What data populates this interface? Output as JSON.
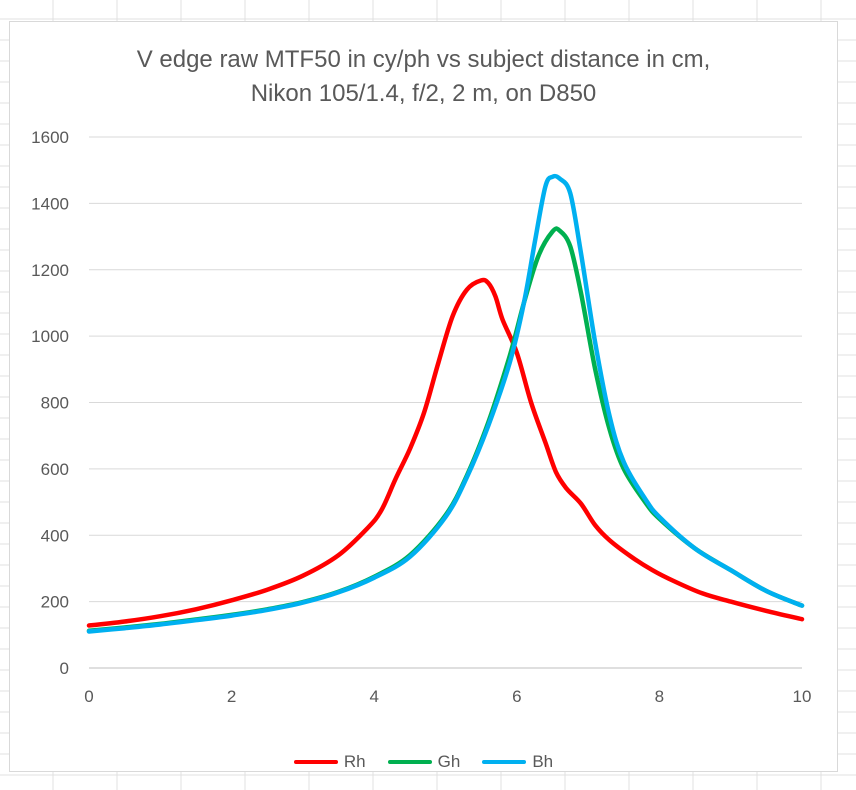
{
  "chart_data": {
    "type": "line",
    "title": [
      "V edge raw MTF50 in cy/ph vs subject distance in cm,",
      "Nikon 105/1.4, f/2, 2 m, on D850"
    ],
    "xlabel": "",
    "ylabel": "",
    "xlim": [
      0,
      10
    ],
    "ylim": [
      0,
      1600
    ],
    "xticks": [
      0,
      2,
      4,
      6,
      8,
      10
    ],
    "yticks": [
      0,
      200,
      400,
      600,
      800,
      1000,
      1200,
      1400,
      1600
    ],
    "grid": "horizontal",
    "legend_position": "bottom",
    "series": [
      {
        "name": "Rh",
        "color": "#ff0000",
        "points": [
          [
            0,
            128
          ],
          [
            0.5,
            140
          ],
          [
            1,
            156
          ],
          [
            1.5,
            177
          ],
          [
            2,
            204
          ],
          [
            2.5,
            236
          ],
          [
            3,
            278
          ],
          [
            3.5,
            340
          ],
          [
            3.9,
            420
          ],
          [
            4.1,
            475
          ],
          [
            4.3,
            570
          ],
          [
            4.5,
            660
          ],
          [
            4.7,
            770
          ],
          [
            4.9,
            920
          ],
          [
            5.1,
            1060
          ],
          [
            5.3,
            1140
          ],
          [
            5.5,
            1168
          ],
          [
            5.6,
            1160
          ],
          [
            5.7,
            1120
          ],
          [
            5.8,
            1050
          ],
          [
            6,
            950
          ],
          [
            6.2,
            800
          ],
          [
            6.4,
            680
          ],
          [
            6.55,
            590
          ],
          [
            6.7,
            540
          ],
          [
            6.9,
            495
          ],
          [
            7.1,
            430
          ],
          [
            7.3,
            385
          ],
          [
            7.6,
            336
          ],
          [
            7.9,
            295
          ],
          [
            8.2,
            262
          ],
          [
            8.6,
            225
          ],
          [
            9,
            200
          ],
          [
            9.5,
            172
          ],
          [
            10,
            147
          ]
        ]
      },
      {
        "name": "Gh",
        "color": "#00b050",
        "points": [
          [
            0,
            112
          ],
          [
            0.5,
            122
          ],
          [
            1,
            133
          ],
          [
            1.5,
            146
          ],
          [
            2,
            160
          ],
          [
            2.5,
            177
          ],
          [
            3,
            199
          ],
          [
            3.5,
            230
          ],
          [
            4,
            275
          ],
          [
            4.5,
            340
          ],
          [
            5,
            460
          ],
          [
            5.3,
            580
          ],
          [
            5.6,
            740
          ],
          [
            5.9,
            940
          ],
          [
            6.1,
            1100
          ],
          [
            6.3,
            1240
          ],
          [
            6.5,
            1315
          ],
          [
            6.6,
            1318
          ],
          [
            6.75,
            1270
          ],
          [
            6.9,
            1130
          ],
          [
            7.1,
            900
          ],
          [
            7.3,
            720
          ],
          [
            7.5,
            600
          ],
          [
            7.8,
            500
          ],
          [
            8,
            450
          ],
          [
            8.5,
            360
          ],
          [
            9,
            295
          ],
          [
            9.5,
            232
          ],
          [
            10,
            188
          ]
        ]
      },
      {
        "name": "Bh",
        "color": "#00b0f0",
        "points": [
          [
            0,
            110
          ],
          [
            0.5,
            120
          ],
          [
            1,
            131
          ],
          [
            1.5,
            144
          ],
          [
            2,
            158
          ],
          [
            2.5,
            175
          ],
          [
            3,
            197
          ],
          [
            3.5,
            228
          ],
          [
            4,
            272
          ],
          [
            4.5,
            335
          ],
          [
            5,
            455
          ],
          [
            5.3,
            575
          ],
          [
            5.6,
            730
          ],
          [
            5.9,
            920
          ],
          [
            6.1,
            1100
          ],
          [
            6.25,
            1280
          ],
          [
            6.4,
            1450
          ],
          [
            6.5,
            1480
          ],
          [
            6.6,
            1475
          ],
          [
            6.75,
            1430
          ],
          [
            6.9,
            1250
          ],
          [
            7.1,
            980
          ],
          [
            7.3,
            760
          ],
          [
            7.5,
            620
          ],
          [
            7.8,
            510
          ],
          [
            8,
            455
          ],
          [
            8.5,
            360
          ],
          [
            9,
            295
          ],
          [
            9.5,
            232
          ],
          [
            10,
            188
          ]
        ]
      }
    ]
  }
}
